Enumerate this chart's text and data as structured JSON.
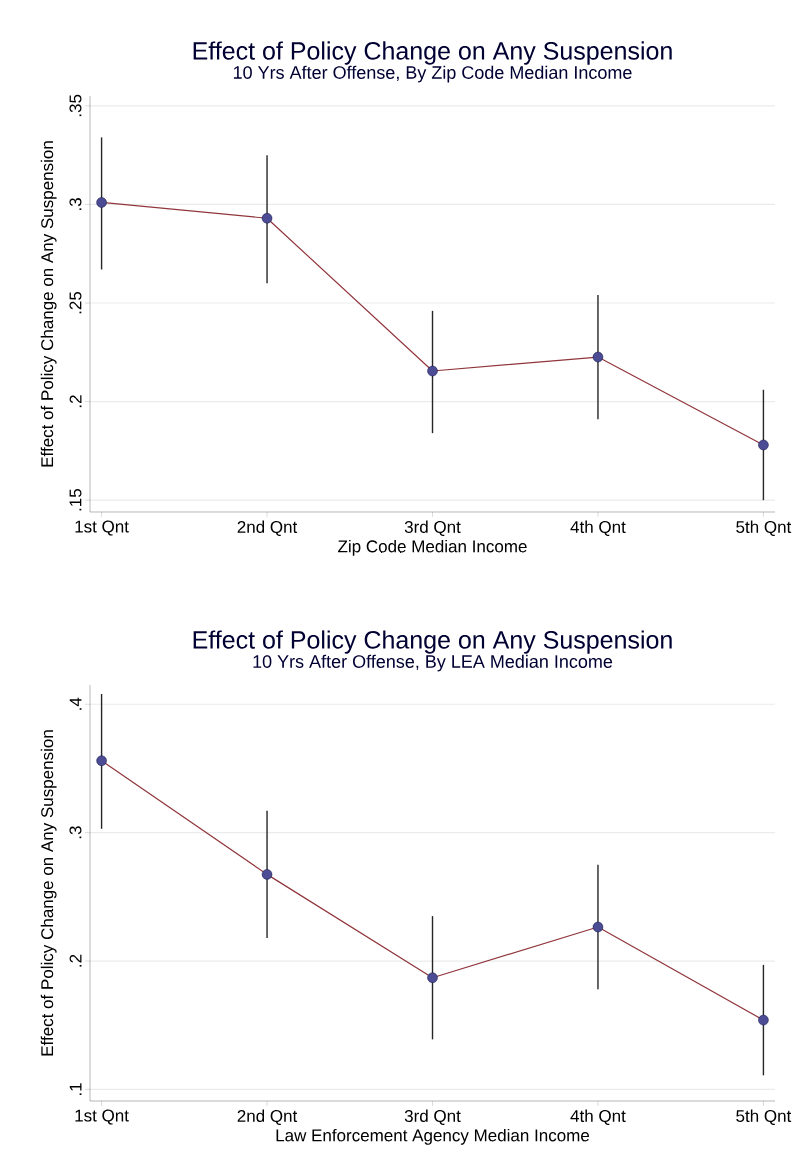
{
  "chart_data": [
    {
      "type": "line",
      "title": "Effect of Policy Change on Any Suspension",
      "subtitle": "10 Yrs After Offense, By Zip Code Median Income",
      "xlabel": "Zip Code Median Income",
      "ylabel": "Effect of Policy Change on Any Suspension",
      "categories": [
        "1st Qnt",
        "2nd Qnt",
        "3rd Qnt",
        "4th Qnt",
        "5th Qnt"
      ],
      "series": [
        {
          "color": "#90353b",
          "values": [
            0.301,
            0.293,
            0.2155,
            0.2226,
            0.178
          ],
          "errors": [
            [
              0.267,
              0.334
            ],
            [
              0.26,
              0.325
            ],
            [
              0.184,
              0.246
            ],
            [
              0.191,
              0.254
            ],
            [
              0.15,
              0.206
            ]
          ]
        }
      ],
      "ylim": [
        0.144,
        0.355
      ],
      "yticks": [
        {
          "value": 0.15,
          "label": ".15"
        },
        {
          "value": 0.2,
          "label": ".2"
        },
        {
          "value": 0.25,
          "label": ".25"
        },
        {
          "value": 0.3,
          "label": ".3"
        },
        {
          "value": 0.35,
          "label": ".35"
        }
      ],
      "grid": "y",
      "marker": "circle"
    },
    {
      "type": "line",
      "title": "Effect of Policy Change on Any Suspension",
      "subtitle": "10 Yrs After Offense, By LEA Median Income",
      "xlabel": "Law Enforcement Agency Median Income",
      "ylabel": "Effect of Policy Change on Any Suspension",
      "categories": [
        "1st Qnt",
        "2nd Qnt",
        "3rd Qnt",
        "4th Qnt",
        "5th Qnt"
      ],
      "series": [
        {
          "color": "#90353b",
          "values": [
            0.356,
            0.2675,
            0.187,
            0.2265,
            0.154
          ],
          "errors": [
            [
              0.303,
              0.408
            ],
            [
              0.218,
              0.317
            ],
            [
              0.139,
              0.235
            ],
            [
              0.178,
              0.275
            ],
            [
              0.111,
              0.197
            ]
          ]
        }
      ],
      "ylim": [
        0.091,
        0.415
      ],
      "yticks": [
        {
          "value": 0.1,
          "label": ".1"
        },
        {
          "value": 0.2,
          "label": ".2"
        },
        {
          "value": 0.3,
          "label": ".3"
        },
        {
          "value": 0.4,
          "label": ".4"
        }
      ],
      "grid": "y",
      "marker": "circle"
    }
  ]
}
